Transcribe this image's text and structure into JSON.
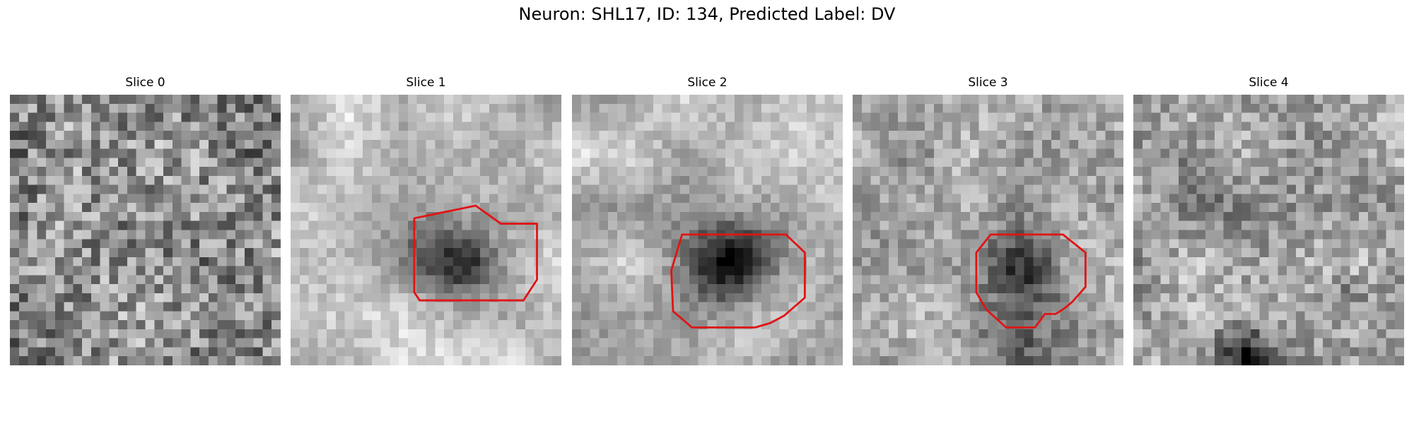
{
  "figure": {
    "title": "Neuron: SHL17, ID: 134, Predicted Label: DV"
  },
  "contour_color": "#e01414",
  "slices": [
    {
      "label": "Slice 0",
      "has_contour": false,
      "contour": []
    },
    {
      "label": "Slice 1",
      "has_contour": true,
      "contour": [
        [
          13.7,
          13.7
        ],
        [
          20.5,
          12.3
        ],
        [
          23.3,
          14.3
        ],
        [
          27.3,
          14.3
        ],
        [
          27.3,
          20.5
        ],
        [
          25.8,
          22.8
        ],
        [
          14.3,
          22.8
        ],
        [
          13.7,
          21.9
        ]
      ]
    },
    {
      "label": "Slice 2",
      "has_contour": true,
      "contour": [
        [
          12.2,
          15.5
        ],
        [
          23.7,
          15.5
        ],
        [
          25.8,
          17.5
        ],
        [
          25.8,
          22.5
        ],
        [
          23.5,
          24.5
        ],
        [
          22.0,
          25.3
        ],
        [
          20.3,
          25.8
        ],
        [
          13.3,
          25.8
        ],
        [
          11.2,
          24.0
        ],
        [
          11.0,
          19.5
        ]
      ]
    },
    {
      "label": "Slice 3",
      "has_contour": true,
      "contour": [
        [
          15.3,
          15.5
        ],
        [
          23.3,
          15.5
        ],
        [
          25.8,
          17.5
        ],
        [
          25.8,
          21.3
        ],
        [
          24.3,
          23.0
        ],
        [
          23.3,
          23.8
        ],
        [
          22.5,
          24.3
        ],
        [
          21.3,
          24.3
        ],
        [
          20.2,
          25.8
        ],
        [
          17.0,
          25.8
        ],
        [
          14.8,
          23.8
        ],
        [
          13.7,
          21.9
        ],
        [
          13.7,
          17.5
        ]
      ]
    },
    {
      "label": "Slice 4",
      "has_contour": false,
      "contour": []
    }
  ]
}
